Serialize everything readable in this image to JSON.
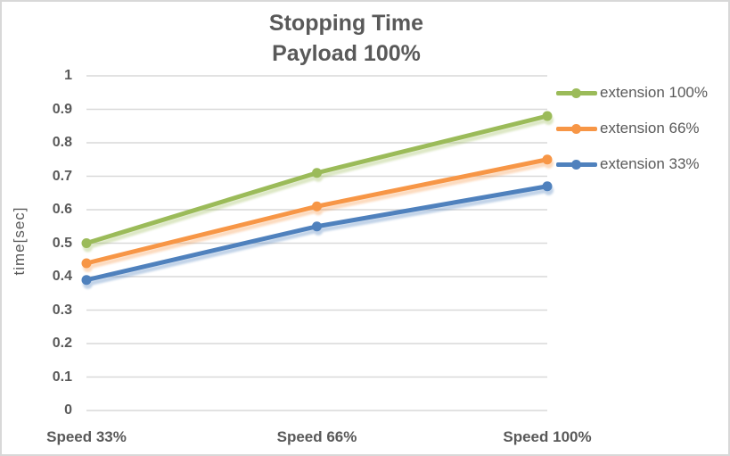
{
  "title": {
    "line1": "Stopping Time",
    "line2": "Payload 100%"
  },
  "chart_data": {
    "type": "line",
    "categories": [
      "Speed 33%",
      "Speed 66%",
      "Speed 100%"
    ],
    "series": [
      {
        "name": "extension 100%",
        "color": "#9BBB59",
        "values": [
          0.5,
          0.71,
          0.88
        ]
      },
      {
        "name": "extension 66%",
        "color": "#F79646",
        "values": [
          0.44,
          0.61,
          0.75
        ]
      },
      {
        "name": "extension 33%",
        "color": "#4F81BD",
        "values": [
          0.39,
          0.55,
          0.67
        ]
      }
    ],
    "xlabel": "",
    "ylabel": "time[sec]",
    "ylim": [
      0,
      1
    ],
    "yticks": [
      {
        "v": 1.0,
        "label": "1"
      },
      {
        "v": 0.9,
        "label": "0.9"
      },
      {
        "v": 0.8,
        "label": "0.8"
      },
      {
        "v": 0.7,
        "label": "0.7"
      },
      {
        "v": 0.6,
        "label": "0.6"
      },
      {
        "v": 0.5,
        "label": "0.5"
      },
      {
        "v": 0.4,
        "label": "0.4"
      },
      {
        "v": 0.3,
        "label": "0.3"
      },
      {
        "v": 0.2,
        "label": "0.2"
      },
      {
        "v": 0.1,
        "label": "0.1"
      },
      {
        "v": 0.0,
        "label": "0"
      }
    ],
    "grid": true,
    "legend_position": "right",
    "colors": {
      "text": "#595959",
      "gridline": "#D9D9D9",
      "border": "#D8D8D8",
      "background": "#FFFFFF"
    }
  }
}
